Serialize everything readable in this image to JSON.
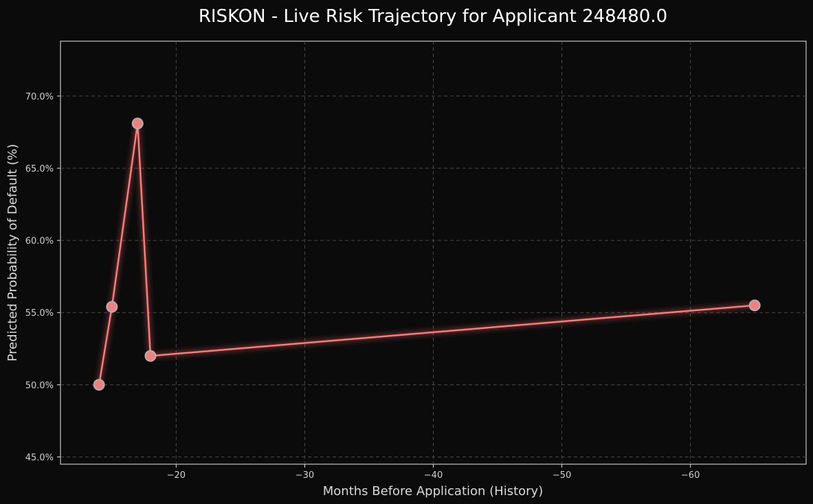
{
  "chart_data": {
    "type": "line",
    "title": "RISKON - Live Risk Trajectory for Applicant 248480.0",
    "xlabel": "Months Before Application (History)",
    "ylabel": "Predicted Probability of Default (%)",
    "x_axis_inverted": true,
    "xlim": [
      -11,
      -69
    ],
    "ylim": [
      44.5,
      73.8
    ],
    "x_ticks": [
      -20,
      -30,
      -40,
      -50,
      -60
    ],
    "x_tick_labels": [
      "−20",
      "−30",
      "−40",
      "−50",
      "−60"
    ],
    "y_ticks": [
      45,
      50,
      55,
      60,
      65,
      70
    ],
    "y_tick_labels": [
      "45.0%",
      "50.0%",
      "55.0%",
      "60.0%",
      "65.0%",
      "70.0%"
    ],
    "grid": true,
    "series": [
      {
        "x": [
          -14,
          -15,
          -17,
          -18,
          -65
        ],
        "values": [
          50.0,
          55.4,
          68.1,
          52.0,
          55.5
        ]
      }
    ],
    "colors": {
      "line": "#ff7b7b",
      "marker_fill": "#f08080",
      "marker_edge": "#b0b0b0",
      "background": "#0b0b0b",
      "grid": "#4a4a4a",
      "text": "#d9d9d9"
    }
  }
}
